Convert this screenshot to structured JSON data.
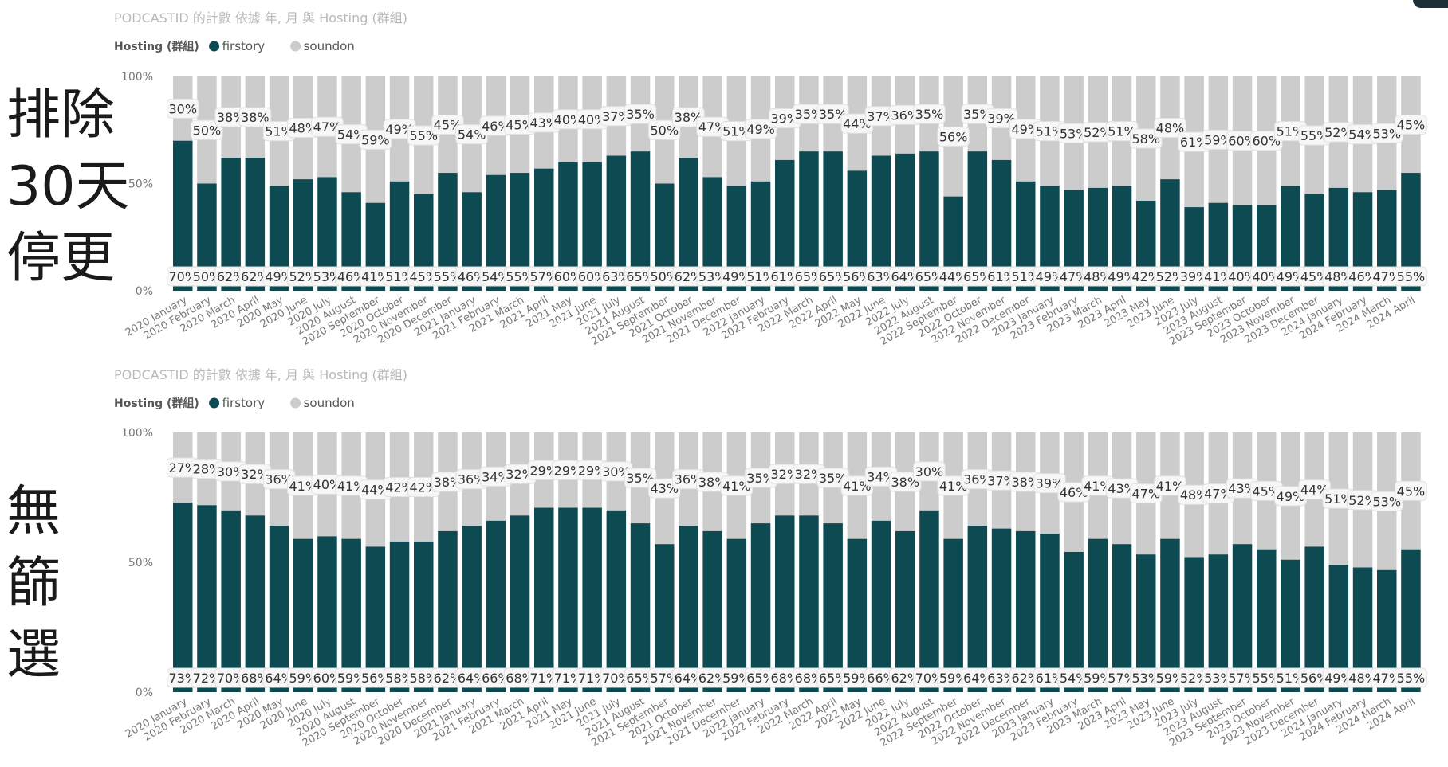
{
  "side_labels": {
    "top": [
      "排除",
      "30天",
      "停更"
    ],
    "bottom": [
      "無",
      "篩",
      "選"
    ]
  },
  "colors": {
    "firstory": "#0d4a52",
    "soundon": "#cccccc",
    "title": "#b8b8b8",
    "axis_text": "#777777",
    "label_bg": "#f7f7f7",
    "label_text": "#333333",
    "corner": "#1f2f3a"
  },
  "icons": {
    "legend_marker": "circle-icon"
  },
  "chart_data": [
    {
      "type": "bar",
      "stacked": true,
      "percent": true,
      "title": "PODCASTID 的計數 依據 年, 月 與 Hosting (群組)",
      "legend": {
        "title": "Hosting (群組)",
        "entries": [
          "firstory",
          "soundon"
        ],
        "placement": "top-left"
      },
      "yticks": [
        "100%",
        "50%",
        "0%"
      ],
      "ylim": [
        0,
        100
      ],
      "grid": false,
      "categories": [
        "2020 January",
        "2020 February",
        "2020 March",
        "2020 April",
        "2020 May",
        "2020 June",
        "2020 July",
        "2020 August",
        "2020 September",
        "2020 October",
        "2020 November",
        "2020 December",
        "2021 January",
        "2021 February",
        "2021 March",
        "2021 April",
        "2021 May",
        "2021 June",
        "2021 July",
        "2021 August",
        "2021 September",
        "2021 October",
        "2021 November",
        "2021 December",
        "2022 January",
        "2022 February",
        "2022 March",
        "2022 April",
        "2022 May",
        "2022 June",
        "2022 July",
        "2022 August",
        "2022 September",
        "2022 October",
        "2022 November",
        "2022 December",
        "2023 January",
        "2023 February",
        "2023 March",
        "2023 April",
        "2023 May",
        "2023 June",
        "2023 July",
        "2023 August",
        "2023 September",
        "2023 October",
        "2023 November",
        "2023 December",
        "2024 January",
        "2024 February",
        "2024 March",
        "2024 April"
      ],
      "series": [
        {
          "name": "firstory",
          "values": [
            70,
            50,
            62,
            62,
            49,
            52,
            53,
            46,
            41,
            51,
            45,
            55,
            46,
            54,
            55,
            57,
            60,
            60,
            63,
            65,
            50,
            62,
            53,
            49,
            51,
            61,
            65,
            65,
            56,
            63,
            64,
            65,
            44,
            65,
            61,
            51,
            49,
            47,
            48,
            49,
            42,
            52,
            39,
            41,
            40,
            40,
            49,
            45,
            48,
            46,
            47,
            55
          ]
        },
        {
          "name": "soundon",
          "values": [
            30,
            50,
            38,
            38,
            51,
            48,
            47,
            54,
            59,
            49,
            55,
            45,
            54,
            46,
            45,
            43,
            40,
            40,
            37,
            35,
            50,
            38,
            47,
            51,
            49,
            39,
            35,
            35,
            44,
            37,
            36,
            35,
            56,
            35,
            39,
            49,
            51,
            53,
            52,
            51,
            58,
            48,
            61,
            59,
            60,
            60,
            51,
            55,
            52,
            54,
            53,
            45
          ]
        }
      ]
    },
    {
      "type": "bar",
      "stacked": true,
      "percent": true,
      "title": "PODCASTID 的計數 依據 年, 月 與 Hosting (群組)",
      "legend": {
        "title": "Hosting (群組)",
        "entries": [
          "firstory",
          "soundon"
        ],
        "placement": "top-left"
      },
      "yticks": [
        "100%",
        "50%",
        "0%"
      ],
      "ylim": [
        0,
        100
      ],
      "grid": false,
      "categories": [
        "2020 January",
        "2020 February",
        "2020 March",
        "2020 April",
        "2020 May",
        "2020 June",
        "2020 July",
        "2020 August",
        "2020 September",
        "2020 October",
        "2020 November",
        "2020 December",
        "2021 January",
        "2021 February",
        "2021 March",
        "2021 April",
        "2021 May",
        "2021 June",
        "2021 July",
        "2021 August",
        "2021 September",
        "2021 October",
        "2021 November",
        "2021 December",
        "2022 January",
        "2022 February",
        "2022 March",
        "2022 April",
        "2022 May",
        "2022 June",
        "2022 July",
        "2022 August",
        "2022 September",
        "2022 October",
        "2022 November",
        "2022 December",
        "2023 January",
        "2023 February",
        "2023 March",
        "2023 April",
        "2023 May",
        "2023 June",
        "2023 July",
        "2023 August",
        "2023 September",
        "2023 October",
        "2023 November",
        "2023 December",
        "2024 January",
        "2024 February",
        "2024 March",
        "2024 April"
      ],
      "series": [
        {
          "name": "firstory",
          "values": [
            73,
            72,
            70,
            68,
            64,
            59,
            60,
            59,
            56,
            58,
            58,
            62,
            64,
            66,
            68,
            71,
            71,
            71,
            70,
            65,
            57,
            64,
            62,
            59,
            65,
            68,
            68,
            65,
            59,
            66,
            62,
            70,
            59,
            64,
            63,
            62,
            61,
            54,
            59,
            57,
            53,
            59,
            52,
            53,
            57,
            55,
            51,
            56,
            49,
            48,
            47,
            55
          ]
        },
        {
          "name": "soundon",
          "values": [
            27,
            28,
            30,
            32,
            36,
            41,
            40,
            41,
            44,
            42,
            42,
            38,
            36,
            34,
            32,
            29,
            29,
            29,
            30,
            35,
            43,
            36,
            38,
            41,
            35,
            32,
            32,
            35,
            41,
            34,
            38,
            30,
            41,
            36,
            37,
            38,
            39,
            46,
            41,
            43,
            47,
            41,
            48,
            47,
            43,
            45,
            49,
            44,
            51,
            52,
            53,
            45
          ]
        }
      ]
    }
  ]
}
